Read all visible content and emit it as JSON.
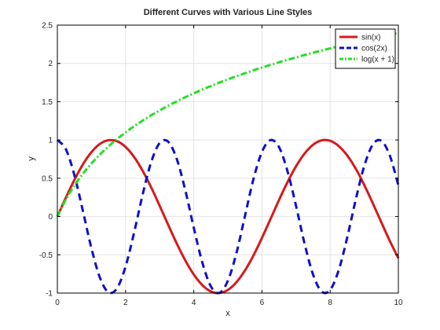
{
  "chart_data": {
    "type": "line",
    "title": "Different Curves with Various Line Styles",
    "xlabel": "x",
    "ylabel": "y",
    "xlim": [
      0,
      10
    ],
    "ylim": [
      -1,
      2.5
    ],
    "xticks": [
      0,
      2,
      4,
      6,
      8,
      10
    ],
    "xtick_labels": [
      "0",
      "2",
      "4",
      "6",
      "8",
      "10"
    ],
    "yticks": [
      -1,
      -0.5,
      0,
      0.5,
      1,
      1.5,
      2,
      2.5
    ],
    "ytick_labels": [
      "-1",
      "-0.5",
      "0",
      "0.5",
      "1",
      "1.5",
      "2",
      "2.5"
    ],
    "grid": true,
    "legend_position": "top-right",
    "series": [
      {
        "name": "sin(x)",
        "color": "#d61a1a",
        "style": "solid",
        "x": [
          0,
          0.25,
          0.5,
          0.75,
          1,
          1.25,
          1.5,
          1.75,
          2,
          2.25,
          2.5,
          2.75,
          3,
          3.25,
          3.5,
          3.75,
          4,
          4.25,
          4.5,
          4.75,
          5,
          5.25,
          5.5,
          5.75,
          6,
          6.25,
          6.5,
          6.75,
          7,
          7.25,
          7.5,
          7.75,
          8,
          8.25,
          8.5,
          8.75,
          9,
          9.25,
          9.5,
          9.75,
          10
        ],
        "y": [
          0,
          0.247,
          0.479,
          0.682,
          0.841,
          0.949,
          0.997,
          0.984,
          0.909,
          0.778,
          0.598,
          0.382,
          0.141,
          -0.108,
          -0.351,
          -0.572,
          -0.757,
          -0.895,
          -0.978,
          -0.999,
          -0.959,
          -0.859,
          -0.706,
          -0.509,
          -0.279,
          -0.033,
          0.215,
          0.45,
          0.657,
          0.823,
          0.938,
          0.995,
          0.989,
          0.921,
          0.798,
          0.625,
          0.412,
          0.174,
          -0.075,
          -0.32,
          -0.544
        ]
      },
      {
        "name": "cos(2x)",
        "color": "#1010c8",
        "style": "dashed",
        "x": [
          0,
          0.25,
          0.5,
          0.75,
          1,
          1.25,
          1.5,
          1.75,
          2,
          2.25,
          2.5,
          2.75,
          3,
          3.25,
          3.5,
          3.75,
          4,
          4.25,
          4.5,
          4.75,
          5,
          5.25,
          5.5,
          5.75,
          6,
          6.25,
          6.5,
          6.75,
          7,
          7.25,
          7.5,
          7.75,
          8,
          8.25,
          8.5,
          8.75,
          9,
          9.25,
          9.5,
          9.75,
          10
        ],
        "y": [
          1,
          0.878,
          0.54,
          0.071,
          -0.416,
          -0.801,
          -0.99,
          -0.937,
          -0.654,
          -0.211,
          0.284,
          0.709,
          0.96,
          0.977,
          0.754,
          0.347,
          -0.146,
          -0.599,
          -0.911,
          -0.998,
          -0.839,
          -0.481,
          0.004,
          0.488,
          0.844,
          0.998,
          0.907,
          0.591,
          0.137,
          -0.355,
          -0.76,
          -0.979,
          -0.958,
          -0.702,
          -0.275,
          0.22,
          0.66,
          0.94,
          0.989,
          0.796,
          0.408
        ]
      },
      {
        "name": "log(x + 1)",
        "color": "#22e022",
        "style": "dashdot",
        "x": [
          0,
          0.25,
          0.5,
          0.75,
          1,
          1.25,
          1.5,
          1.75,
          2,
          2.25,
          2.5,
          2.75,
          3,
          3.25,
          3.5,
          3.75,
          4,
          4.25,
          4.5,
          4.75,
          5,
          5.25,
          5.5,
          5.75,
          6,
          6.25,
          6.5,
          6.75,
          7,
          7.25,
          7.5,
          7.75,
          8,
          8.25,
          8.5,
          8.75,
          9,
          9.25,
          9.5,
          9.75,
          10
        ],
        "y": [
          0,
          0.223,
          0.405,
          0.56,
          0.693,
          0.811,
          0.916,
          1.012,
          1.099,
          1.179,
          1.253,
          1.322,
          1.386,
          1.447,
          1.504,
          1.558,
          1.609,
          1.658,
          1.705,
          1.749,
          1.792,
          1.833,
          1.872,
          1.91,
          1.946,
          1.981,
          2.015,
          2.048,
          2.079,
          2.11,
          2.14,
          2.169,
          2.197,
          2.225,
          2.251,
          2.277,
          2.303,
          2.327,
          2.351,
          2.375,
          2.398
        ]
      }
    ]
  }
}
